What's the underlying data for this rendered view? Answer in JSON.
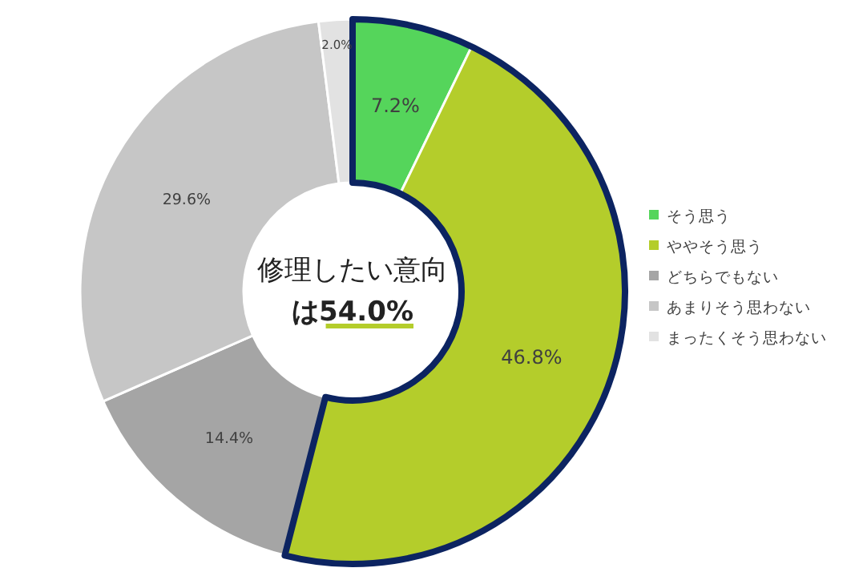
{
  "chart_data": {
    "type": "donut",
    "categories": [
      "そう思う",
      "ややそう思う",
      "どちらでもない",
      "あまりそう思わない",
      "まったくそう思わない"
    ],
    "values": [
      7.2,
      46.8,
      14.4,
      29.6,
      2.0
    ],
    "colors": [
      "#55d55b",
      "#b4cd2b",
      "#a5a5a5",
      "#c6c6c6",
      "#e2e2e2"
    ],
    "value_labels": [
      "7.2%",
      "46.8%",
      "14.4%",
      "29.6%",
      "2.0%"
    ],
    "annotations": [
      "修理したい意向",
      "は54.0%"
    ],
    "legend": "right"
  }
}
